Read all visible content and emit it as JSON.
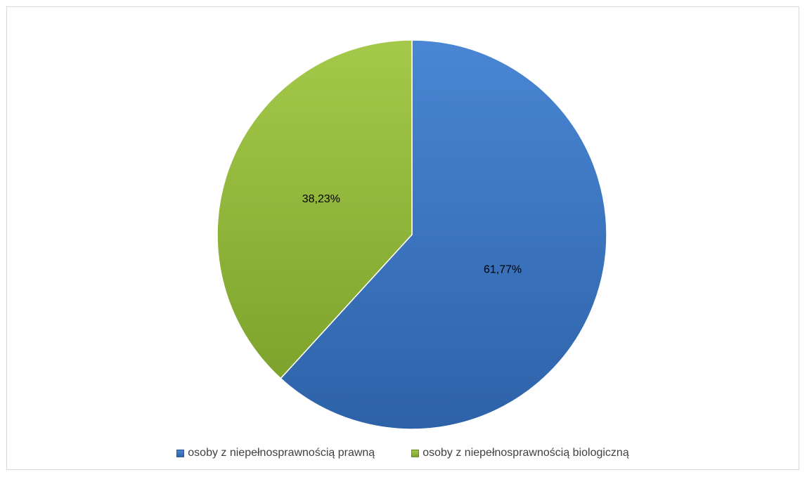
{
  "chart_data": {
    "type": "pie",
    "title": "",
    "slices": [
      {
        "name": "osoby z niepełnosprawnością prawną",
        "value": 61.77,
        "label": "61,77%",
        "color": "#4a86d4",
        "color_dark": "#2d62a8"
      },
      {
        "name": "osoby z niepełnosprawnością biologiczną",
        "value": 38.23,
        "label": "38,23%",
        "color": "#a4c94a",
        "color_dark": "#7ea32c"
      }
    ],
    "start_angle_deg": 0,
    "direction": "clockwise",
    "legend_position": "bottom"
  }
}
